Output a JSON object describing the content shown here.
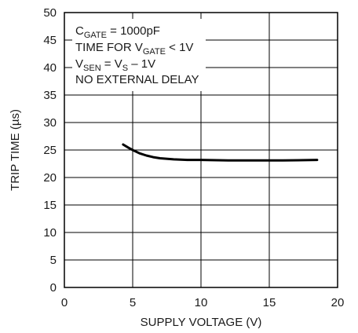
{
  "chart_data": {
    "type": "line",
    "xlabel": "SUPPLY VOLTAGE (V)",
    "ylabel": "TRIP TIME (µs)",
    "xlim": [
      0,
      20
    ],
    "ylim": [
      0,
      50
    ],
    "xticks": [
      0,
      5,
      10,
      15,
      20
    ],
    "yticks": [
      0,
      5,
      10,
      15,
      20,
      25,
      30,
      35,
      40,
      45,
      50
    ],
    "grid": true,
    "series": [
      {
        "x": [
          4.3,
          4.7,
          5.0,
          5.5,
          6.0,
          6.5,
          7.0,
          8.0,
          9.0,
          10.0,
          12.0,
          14.0,
          16.0,
          18.5
        ],
        "y": [
          26.0,
          25.4,
          25.0,
          24.4,
          24.0,
          23.7,
          23.5,
          23.3,
          23.2,
          23.2,
          23.1,
          23.1,
          23.1,
          23.2
        ],
        "color": "#000000"
      }
    ],
    "annotations": {
      "line1": {
        "main": "C",
        "sub": "GATE",
        "rest": " = 1000pF"
      },
      "line2": {
        "main": "TIME FOR V",
        "sub": "GATE",
        "rest": " < 1V"
      },
      "line3": {
        "main": "V",
        "sub": "SEN",
        "mid": " = V",
        "sub2": "S",
        "rest": " – 1V"
      },
      "line4": "NO EXTERNAL DELAY"
    }
  }
}
